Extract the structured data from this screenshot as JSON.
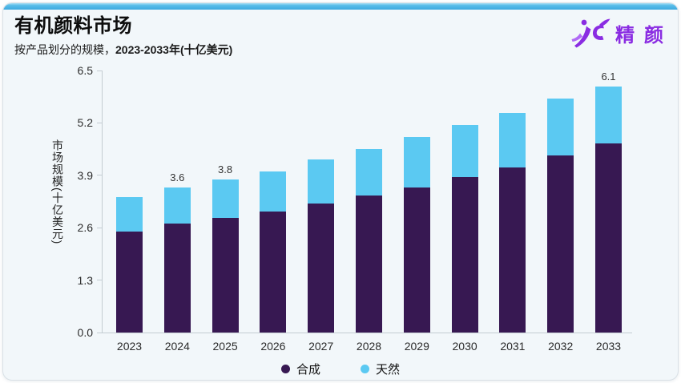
{
  "card": {
    "title": "有机颜料市场",
    "subtitle_regular": "按产品划分的规模，",
    "subtitle_bold": "2023-2033年(十亿美元)",
    "logo": {
      "text": "精颜",
      "mark_icon": "jc-figure-logo",
      "color": "#8a2ce2",
      "accent_color": "#b06af5"
    },
    "accent_bar_color": "#4fb5e5"
  },
  "chart_data": {
    "type": "bar",
    "stacked": true,
    "title": "有机颜料市场",
    "subtitle": "按产品划分的规模，2023-2033年(十亿美元)",
    "xlabel": "",
    "ylabel": "市场规模(十亿美元)",
    "ylim": [
      0,
      6.5
    ],
    "yticks": [
      "0.0",
      "1.3",
      "2.6",
      "3.9",
      "5.2",
      "6.5"
    ],
    "grid": false,
    "legend_position": "bottom",
    "categories": [
      "2023",
      "2024",
      "2025",
      "2026",
      "2027",
      "2028",
      "2029",
      "2030",
      "2031",
      "2032",
      "2033"
    ],
    "series": [
      {
        "name": "合成",
        "color": "#371852",
        "values": [
          2.5,
          2.7,
          2.85,
          3.0,
          3.2,
          3.4,
          3.6,
          3.85,
          4.1,
          4.4,
          4.7
        ]
      },
      {
        "name": "天然",
        "color": "#5bc9f2",
        "values": [
          0.85,
          0.9,
          0.95,
          1.0,
          1.1,
          1.15,
          1.25,
          1.3,
          1.35,
          1.4,
          1.4
        ]
      }
    ],
    "totals": [
      3.35,
      3.6,
      3.8,
      4.0,
      4.3,
      4.55,
      4.85,
      5.15,
      5.45,
      5.8,
      6.1
    ],
    "point_labels": [
      "",
      "3.6",
      "3.8",
      "",
      "",
      "",
      "",
      "",
      "",
      "",
      "6.1"
    ],
    "axis_color": "#c4ccd2"
  }
}
